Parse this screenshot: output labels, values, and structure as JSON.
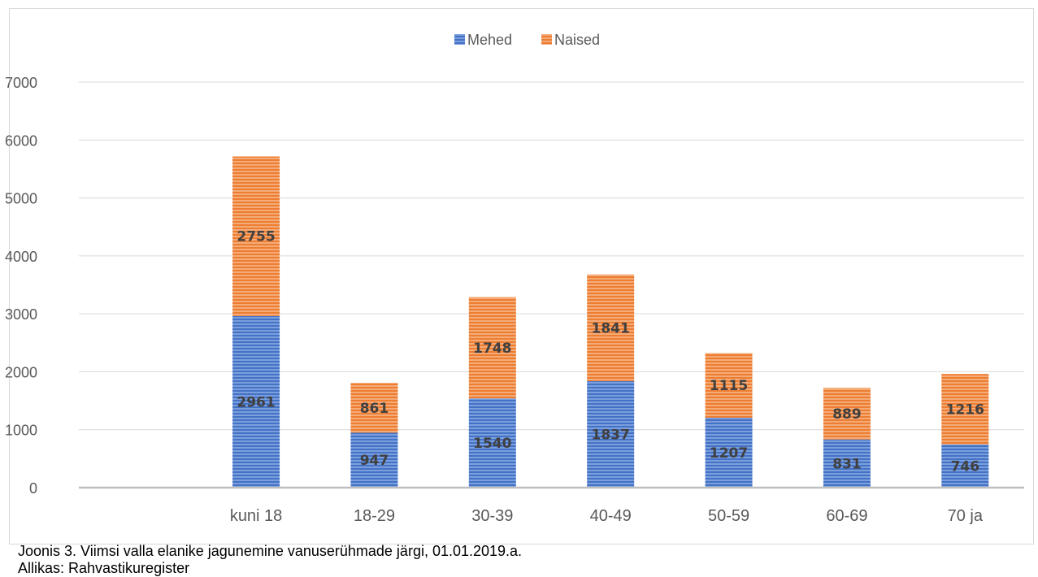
{
  "chart_data": {
    "type": "bar",
    "stacked": true,
    "categories": [
      "",
      "kuni 18",
      "18-29",
      "30-39",
      "40-49",
      "50-59",
      "60-69",
      "70 ja"
    ],
    "series": [
      {
        "name": "Mehed",
        "values": [
          null,
          2961,
          947,
          1540,
          1837,
          1207,
          831,
          746
        ],
        "color": "#4472C4"
      },
      {
        "name": "Naised",
        "values": [
          null,
          2755,
          861,
          1748,
          1841,
          1115,
          889,
          1216
        ],
        "color": "#ED7D31"
      }
    ],
    "ylim": [
      0,
      7000
    ],
    "yticks": [
      0,
      1000,
      2000,
      3000,
      4000,
      5000,
      6000,
      7000
    ],
    "legend_position": "top",
    "grid": true,
    "data_labels": true,
    "fill_pattern": "horizontal-stripes"
  },
  "caption": "Joonis 3. Viimsi valla elanike jagunemine vanuserühmade järgi, 01.01.2019.a.",
  "source": "Allikas: Rahvastikuregister"
}
